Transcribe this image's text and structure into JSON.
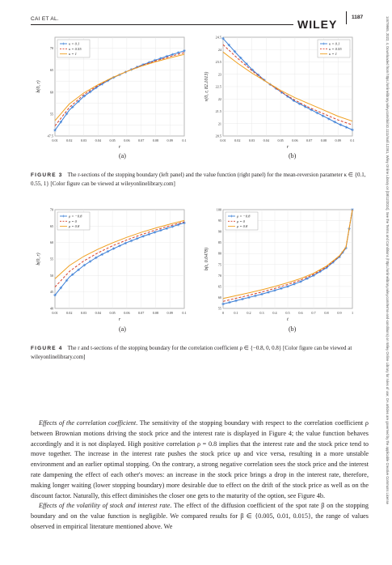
{
  "header": {
    "author": "CAI ET AL.",
    "brand": "WILEY",
    "page": "1187"
  },
  "sidebar_text": "14679965, 2022, 4, Downloaded from https://onlinelibrary.wiley.com/doi/10.1111/mafi.12361, Wiley Online Library on [08/12/2024]. See the Terms and Conditions (https://onlinelibrary.wiley.com/terms-and-conditions) on Wiley Online Library for rules of use; OA articles are governed by the applicable Creative Commons License",
  "figure3": {
    "caption_label": "FIGURE 3",
    "caption_text": "The r-sections of the stopping boundary (left panel) and the value function (right panel) for the mean-reversion parameter κ ∈ {0.1, 0.55, 1} [Color figure can be viewed at wileyonlinelibrary.com]",
    "sub_a": "(a)",
    "sub_b": "(b)"
  },
  "figure4": {
    "caption_label": "FIGURE 4",
    "caption_text": "The r and t-sections of the stopping boundary for the correlation coefficient ρ ∈ {−0.8, 0, 0.8} [Color figure can be viewed at wileyonlinelibrary.com]",
    "sub_a": "(a)",
    "sub_b": "(b)"
  },
  "body": {
    "p1_lead": "Effects of the correlation coefficient",
    "p1_text": ". The sensitivity of the stopping boundary with respect to the correlation coefficient ρ between Brownian motions driving the stock price and the interest rate is displayed in Figure 4; the value function behaves accordingly and it is not displayed. High positive correlation ρ = 0.8 implies that the interest rate and the stock price tend to move together. The increase in the interest rate pushes the stock price up and vice versa, resulting in a more unstable environment and an earlier optimal stopping. On the contrary, a strong negative correlation sees the stock price and the interest rate dampening the effect of each other's moves: an increase in the stock price brings a drop in the interest rate, therefore, making longer waiting (lower stopping boundary) more desirable due to effect on the drift of the stock price as well as on the discount factor. Naturally, this effect diminishes the closer one gets to the maturity of the option, see Figure 4b.",
    "p2_lead": "Effects of the volatility of stock and interest rate",
    "p2_text": ". The effect of the diffusion coefficient of the spot rate β on the stopping boundary and on the value function is negligible. We compared results for β ∈ {0.005, 0.01, 0.015}, the range of values observed in empirical literature mentioned above. We"
  },
  "colors": {
    "blue": "#3a7ed6",
    "red": "#d6402a",
    "orange": "#f0a020"
  },
  "chart_data": [
    {
      "id": "fig3a",
      "type": "line",
      "xlabel": "r",
      "ylabel": "b(0, r)",
      "xlim": [
        0.01,
        0.1
      ],
      "ylim": [
        47.5,
        70
      ],
      "xticks": [
        "0.01",
        "0.02",
        "0.03",
        "0.04",
        "0.05",
        "0.06",
        "0.07",
        "0.08",
        "0.09",
        "0.1"
      ],
      "yticks": [
        "47.5",
        "50",
        "52.5",
        "55",
        "57.5",
        "60",
        "62.5",
        "65",
        "67.5",
        "70"
      ],
      "yticklabels_shown": [
        "47.5",
        "",
        "55",
        "",
        "60",
        "",
        "65",
        "",
        "70",
        ""
      ],
      "legend": "top-left",
      "x": [
        0.01,
        0.02,
        0.03,
        0.04,
        0.05,
        0.06,
        0.07,
        0.08,
        0.09,
        0.1
      ],
      "series": [
        {
          "name": "κ = 0.1",
          "style": "blue-star",
          "values": [
            48.8,
            53.4,
            56.5,
            58.8,
            60.7,
            62.2,
            63.6,
            64.8,
            65.9,
            66.9
          ]
        },
        {
          "name": "κ = 0.55",
          "style": "red-dash",
          "values": [
            49.8,
            54.0,
            56.9,
            59.0,
            60.8,
            62.2,
            63.5,
            64.6,
            65.6,
            66.5
          ]
        },
        {
          "name": "κ = 1",
          "style": "orange-solid",
          "values": [
            51.0,
            54.8,
            57.3,
            59.2,
            60.8,
            62.2,
            63.4,
            64.4,
            65.3,
            66.1
          ]
        }
      ]
    },
    {
      "id": "fig3b",
      "type": "line",
      "xlabel": "r",
      "ylabel": "ν(0, r, 82.1013)",
      "xlim": [
        0.01,
        0.1
      ],
      "ylim": [
        20.5,
        24.5
      ],
      "xticks": [
        "0.01",
        "0.02",
        "0.03",
        "0.04",
        "0.05",
        "0.06",
        "0.07",
        "0.08",
        "0.09",
        "0.1"
      ],
      "yticks": [
        "20.5",
        "21",
        "21.5",
        "22",
        "22.5",
        "23",
        "23.5",
        "24",
        "24.5"
      ],
      "legend": "top-right",
      "x": [
        0.01,
        0.02,
        0.03,
        0.04,
        0.05,
        0.06,
        0.07,
        0.08,
        0.09,
        0.1
      ],
      "series": [
        {
          "name": "κ = 0.1",
          "style": "blue-star",
          "values": [
            24.45,
            23.8,
            23.2,
            22.7,
            22.3,
            21.9,
            21.6,
            21.3,
            21.0,
            20.75
          ]
        },
        {
          "name": "κ = 0.55",
          "style": "red-dash",
          "values": [
            24.2,
            23.65,
            23.15,
            22.7,
            22.3,
            21.95,
            21.65,
            21.4,
            21.15,
            20.95
          ]
        },
        {
          "name": "κ = 1",
          "style": "orange-solid",
          "values": [
            23.9,
            23.45,
            23.05,
            22.7,
            22.35,
            22.05,
            21.8,
            21.55,
            21.3,
            21.1
          ]
        }
      ]
    },
    {
      "id": "fig4a",
      "type": "line",
      "xlabel": "r",
      "ylabel": "b(0, r)",
      "xlim": [
        0.01,
        0.1
      ],
      "ylim": [
        40,
        70
      ],
      "xticks": [
        "0.01",
        "0.02",
        "0.03",
        "0.04",
        "0.05",
        "0.06",
        "0.07",
        "0.08",
        "0.09",
        "0.1"
      ],
      "yticks": [
        "40",
        "45",
        "50",
        "55",
        "60",
        "65",
        "70"
      ],
      "legend": "top-left",
      "x": [
        0.01,
        0.02,
        0.03,
        0.04,
        0.05,
        0.06,
        0.07,
        0.08,
        0.09,
        0.1
      ],
      "series": [
        {
          "name": "ρ = −0.8",
          "style": "blue-star",
          "values": [
            44.0,
            49.5,
            53.0,
            55.8,
            58.0,
            60.0,
            61.7,
            63.2,
            64.6,
            66.0
          ]
        },
        {
          "name": "ρ = 0",
          "style": "red-dash",
          "values": [
            46.5,
            51.2,
            54.4,
            56.9,
            59.0,
            60.8,
            62.4,
            63.8,
            65.1,
            66.3
          ]
        },
        {
          "name": "ρ = 0.8",
          "style": "orange-solid",
          "values": [
            49.0,
            53.0,
            55.8,
            58.0,
            59.9,
            61.6,
            63.1,
            64.4,
            65.6,
            66.7
          ]
        }
      ]
    },
    {
      "id": "fig4b",
      "type": "line",
      "xlabel": "t",
      "ylabel": "b(t, 0.0478)",
      "xlim": [
        0,
        1
      ],
      "ylim": [
        55,
        100
      ],
      "xticks": [
        "0",
        "0.1",
        "0.2",
        "0.3",
        "0.4",
        "0.5",
        "0.6",
        "0.7",
        "0.8",
        "0.9",
        "1"
      ],
      "yticks": [
        "55",
        "60",
        "65",
        "70",
        "75",
        "80",
        "85",
        "90",
        "95",
        "100"
      ],
      "legend": "top-left",
      "x": [
        0,
        0.1,
        0.2,
        0.3,
        0.4,
        0.5,
        0.6,
        0.7,
        0.8,
        0.9,
        0.95,
        1.0
      ],
      "series": [
        {
          "name": "ρ = −0.8",
          "style": "blue-star",
          "values": [
            57.0,
            58.5,
            60.0,
            61.5,
            63.2,
            65.0,
            67.2,
            70.0,
            73.5,
            78.5,
            82.5,
            100
          ]
        },
        {
          "name": "ρ = 0",
          "style": "red-dash",
          "values": [
            58.2,
            59.6,
            61.0,
            62.5,
            64.1,
            65.9,
            67.9,
            70.5,
            73.9,
            78.8,
            82.7,
            100
          ]
        },
        {
          "name": "ρ = 0.8",
          "style": "orange-solid",
          "values": [
            59.5,
            60.8,
            62.1,
            63.5,
            65.0,
            66.7,
            68.6,
            71.0,
            74.3,
            79.0,
            82.9,
            100
          ]
        }
      ]
    }
  ]
}
